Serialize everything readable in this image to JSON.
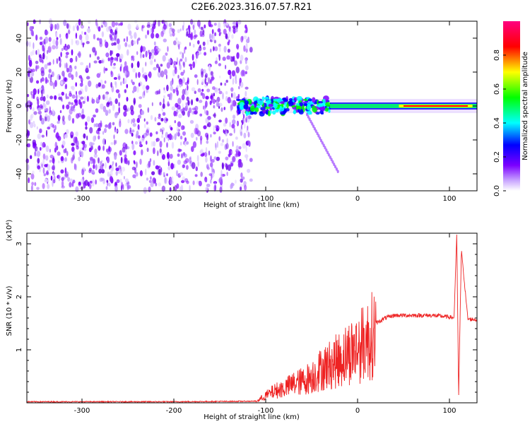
{
  "title": "C2E6.2023.316.07.57.R21",
  "chart_data": [
    {
      "type": "heatmap",
      "xlabel": "Height of straight line (km)",
      "ylabel": "Frequency (Hz)",
      "xlim": [
        -360,
        130
      ],
      "ylim": [
        -50,
        50
      ],
      "x_ticks": [
        -300,
        -200,
        -100,
        0,
        100
      ],
      "y_ticks": [
        -40,
        -20,
        0,
        20,
        40
      ],
      "colorbar": {
        "label": "Normalized spectral amplitude",
        "range": [
          0.0,
          1.0
        ],
        "ticks": [
          "0.0",
          "0.2",
          "0.4",
          "0.6",
          "0.8"
        ],
        "colors": [
          "#ffffff",
          "#7b00ff",
          "#0000ff",
          "#00ffff",
          "#00ff00",
          "#ffff00",
          "#ff0000",
          "#ff00aa"
        ]
      },
      "features": {
        "noise_region_x": [
          -360,
          -125
        ],
        "signal_band_center_hz": 0,
        "signal_start_x": -130
      }
    },
    {
      "type": "line",
      "xlabel": "Height of straight line (km)",
      "ylabel": "SNR (10 * v/v)",
      "y_scale_note": "(x10⁴)",
      "xlim": [
        -360,
        130
      ],
      "ylim": [
        0,
        3.2
      ],
      "x_ticks": [
        -300,
        -200,
        -100,
        0,
        100
      ],
      "y_ticks": [
        1,
        2,
        3
      ],
      "series": [
        {
          "color": "#ee2222",
          "x": [
            -360,
            -200,
            -110,
            -100,
            -90,
            -80,
            -70,
            -60,
            -50,
            -40,
            -30,
            -20,
            -10,
            0,
            10,
            20,
            30,
            40,
            60,
            80,
            100,
            105,
            108,
            110,
            113,
            120,
            130
          ],
          "y": [
            0.02,
            0.02,
            0.03,
            0.15,
            0.25,
            0.3,
            0.4,
            0.45,
            0.55,
            0.7,
            0.8,
            0.9,
            1.05,
            1.15,
            1.3,
            1.5,
            1.6,
            1.65,
            1.65,
            1.65,
            1.62,
            1.6,
            3.2,
            0.1,
            2.9,
            1.58,
            1.57
          ]
        }
      ]
    }
  ]
}
